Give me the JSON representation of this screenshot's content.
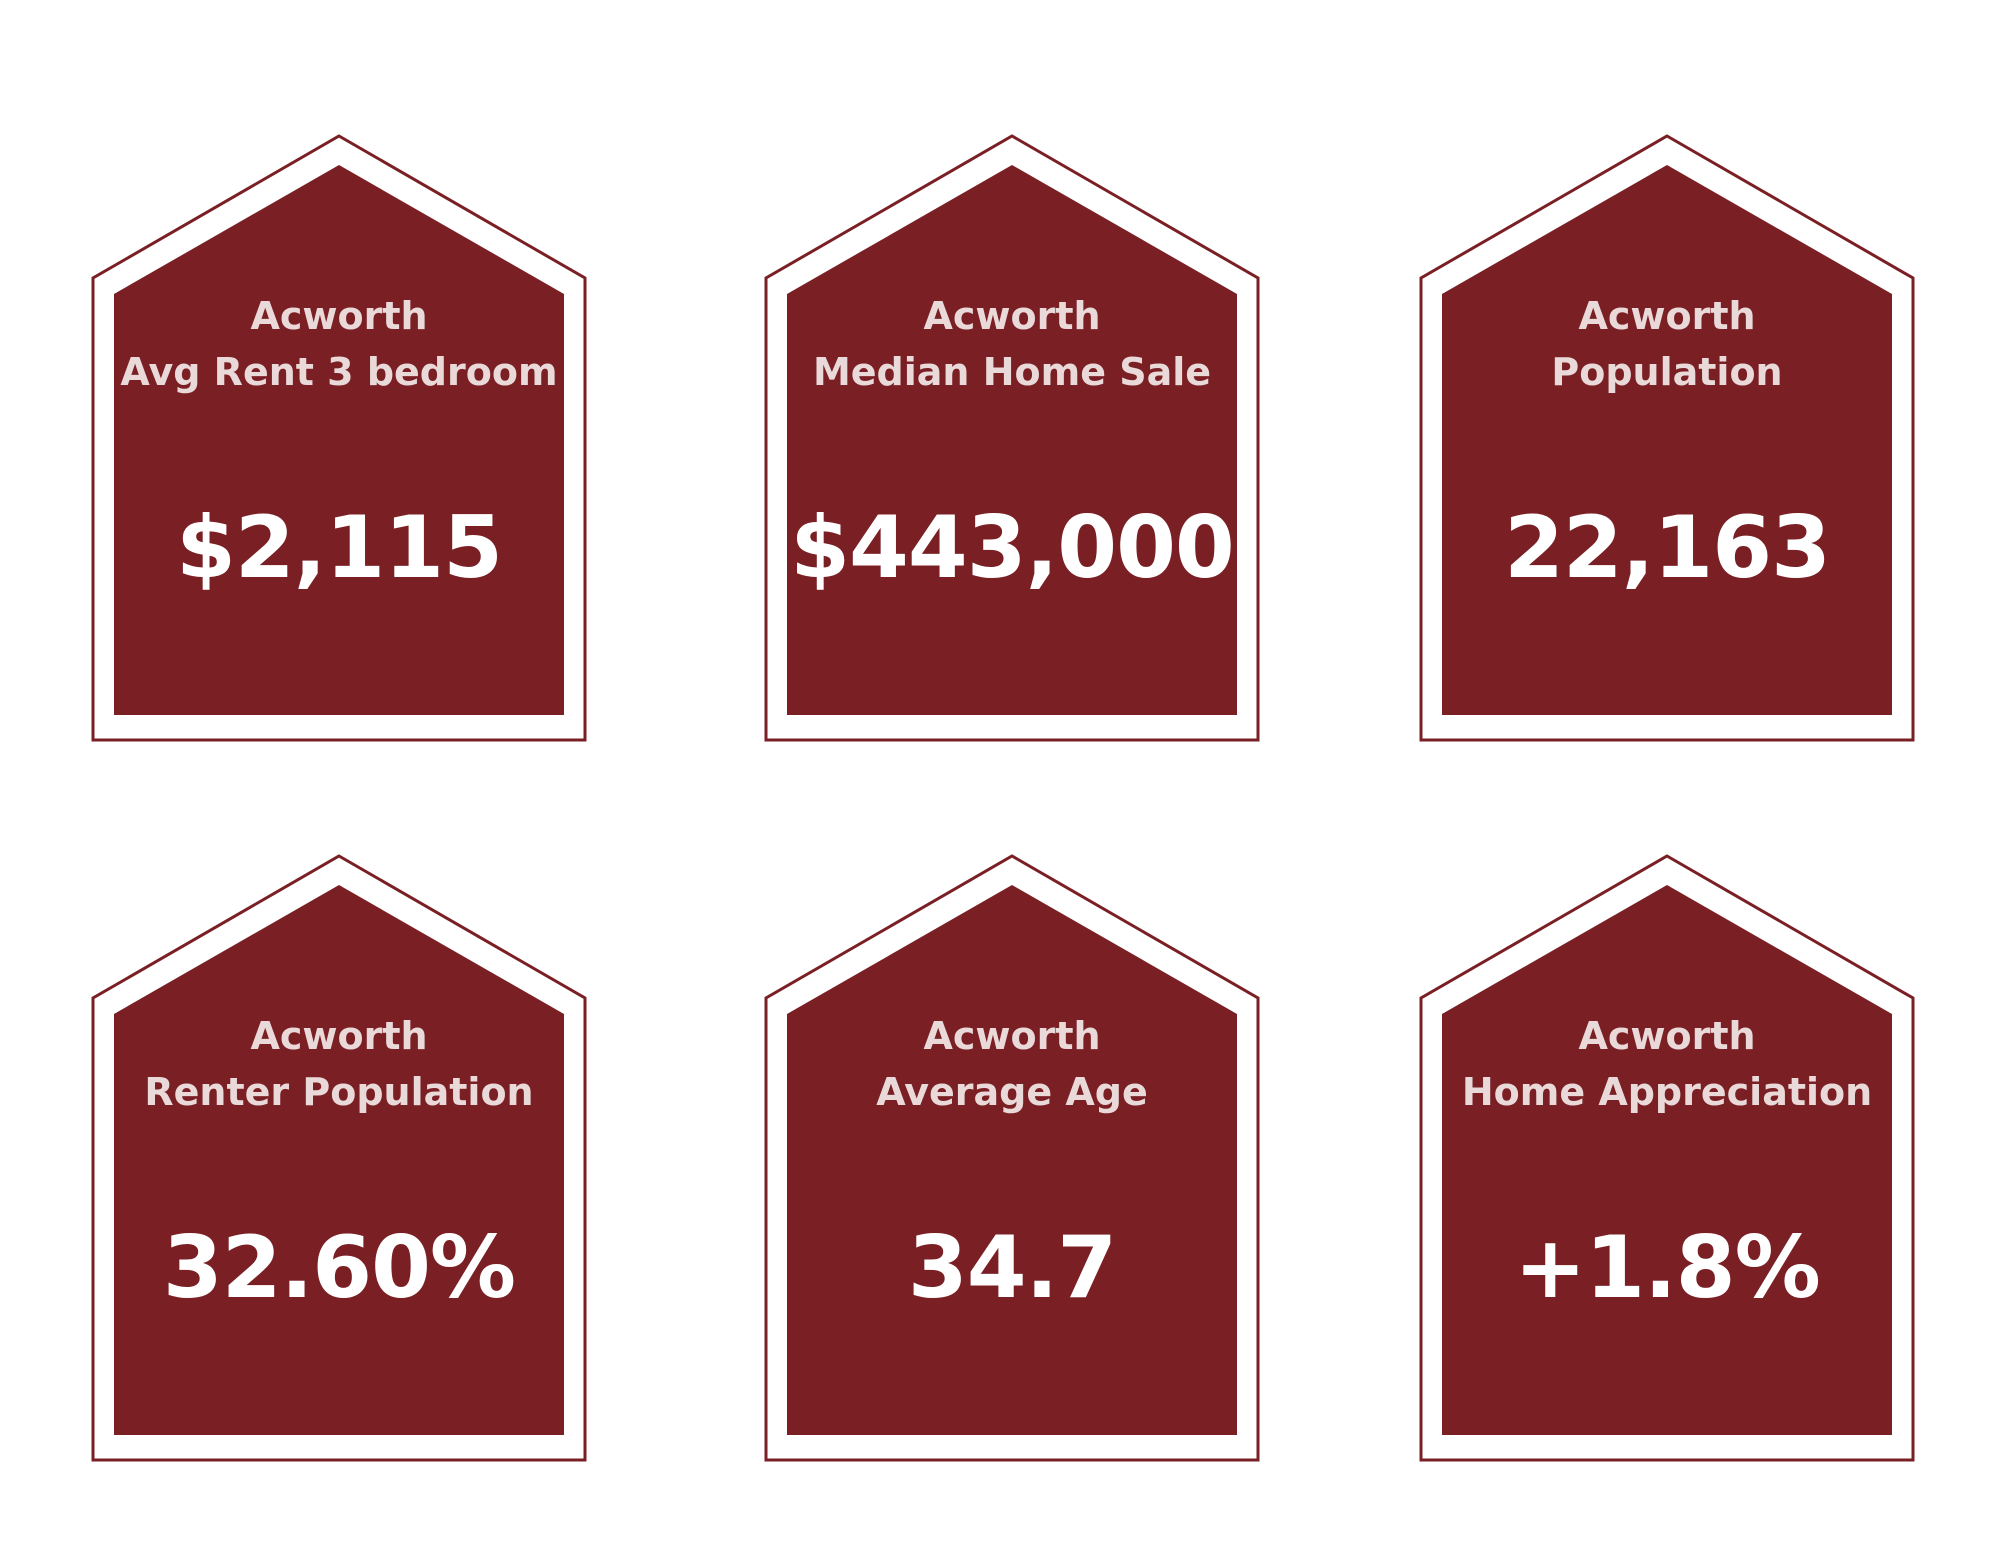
{
  "colors": {
    "card_fill": "#7a1f24",
    "card_outline": "#7a1f24",
    "label_text": "#ead9d9",
    "value_text": "#ffffff",
    "background": "#ffffff"
  },
  "cards": [
    {
      "city": "Acworth",
      "metric": "Avg Rent 3 bedroom",
      "value": "$2,115"
    },
    {
      "city": "Acworth",
      "metric": "Median Home Sale",
      "value": "$443,000"
    },
    {
      "city": "Acworth",
      "metric": "Population",
      "value": "22,163"
    },
    {
      "city": "Acworth",
      "metric": "Renter Population",
      "value": "32.60%"
    },
    {
      "city": "Acworth",
      "metric": "Average Age",
      "value": "34.7"
    },
    {
      "city": "Acworth",
      "metric": "Home Appreciation",
      "value": "+1.8%"
    }
  ]
}
